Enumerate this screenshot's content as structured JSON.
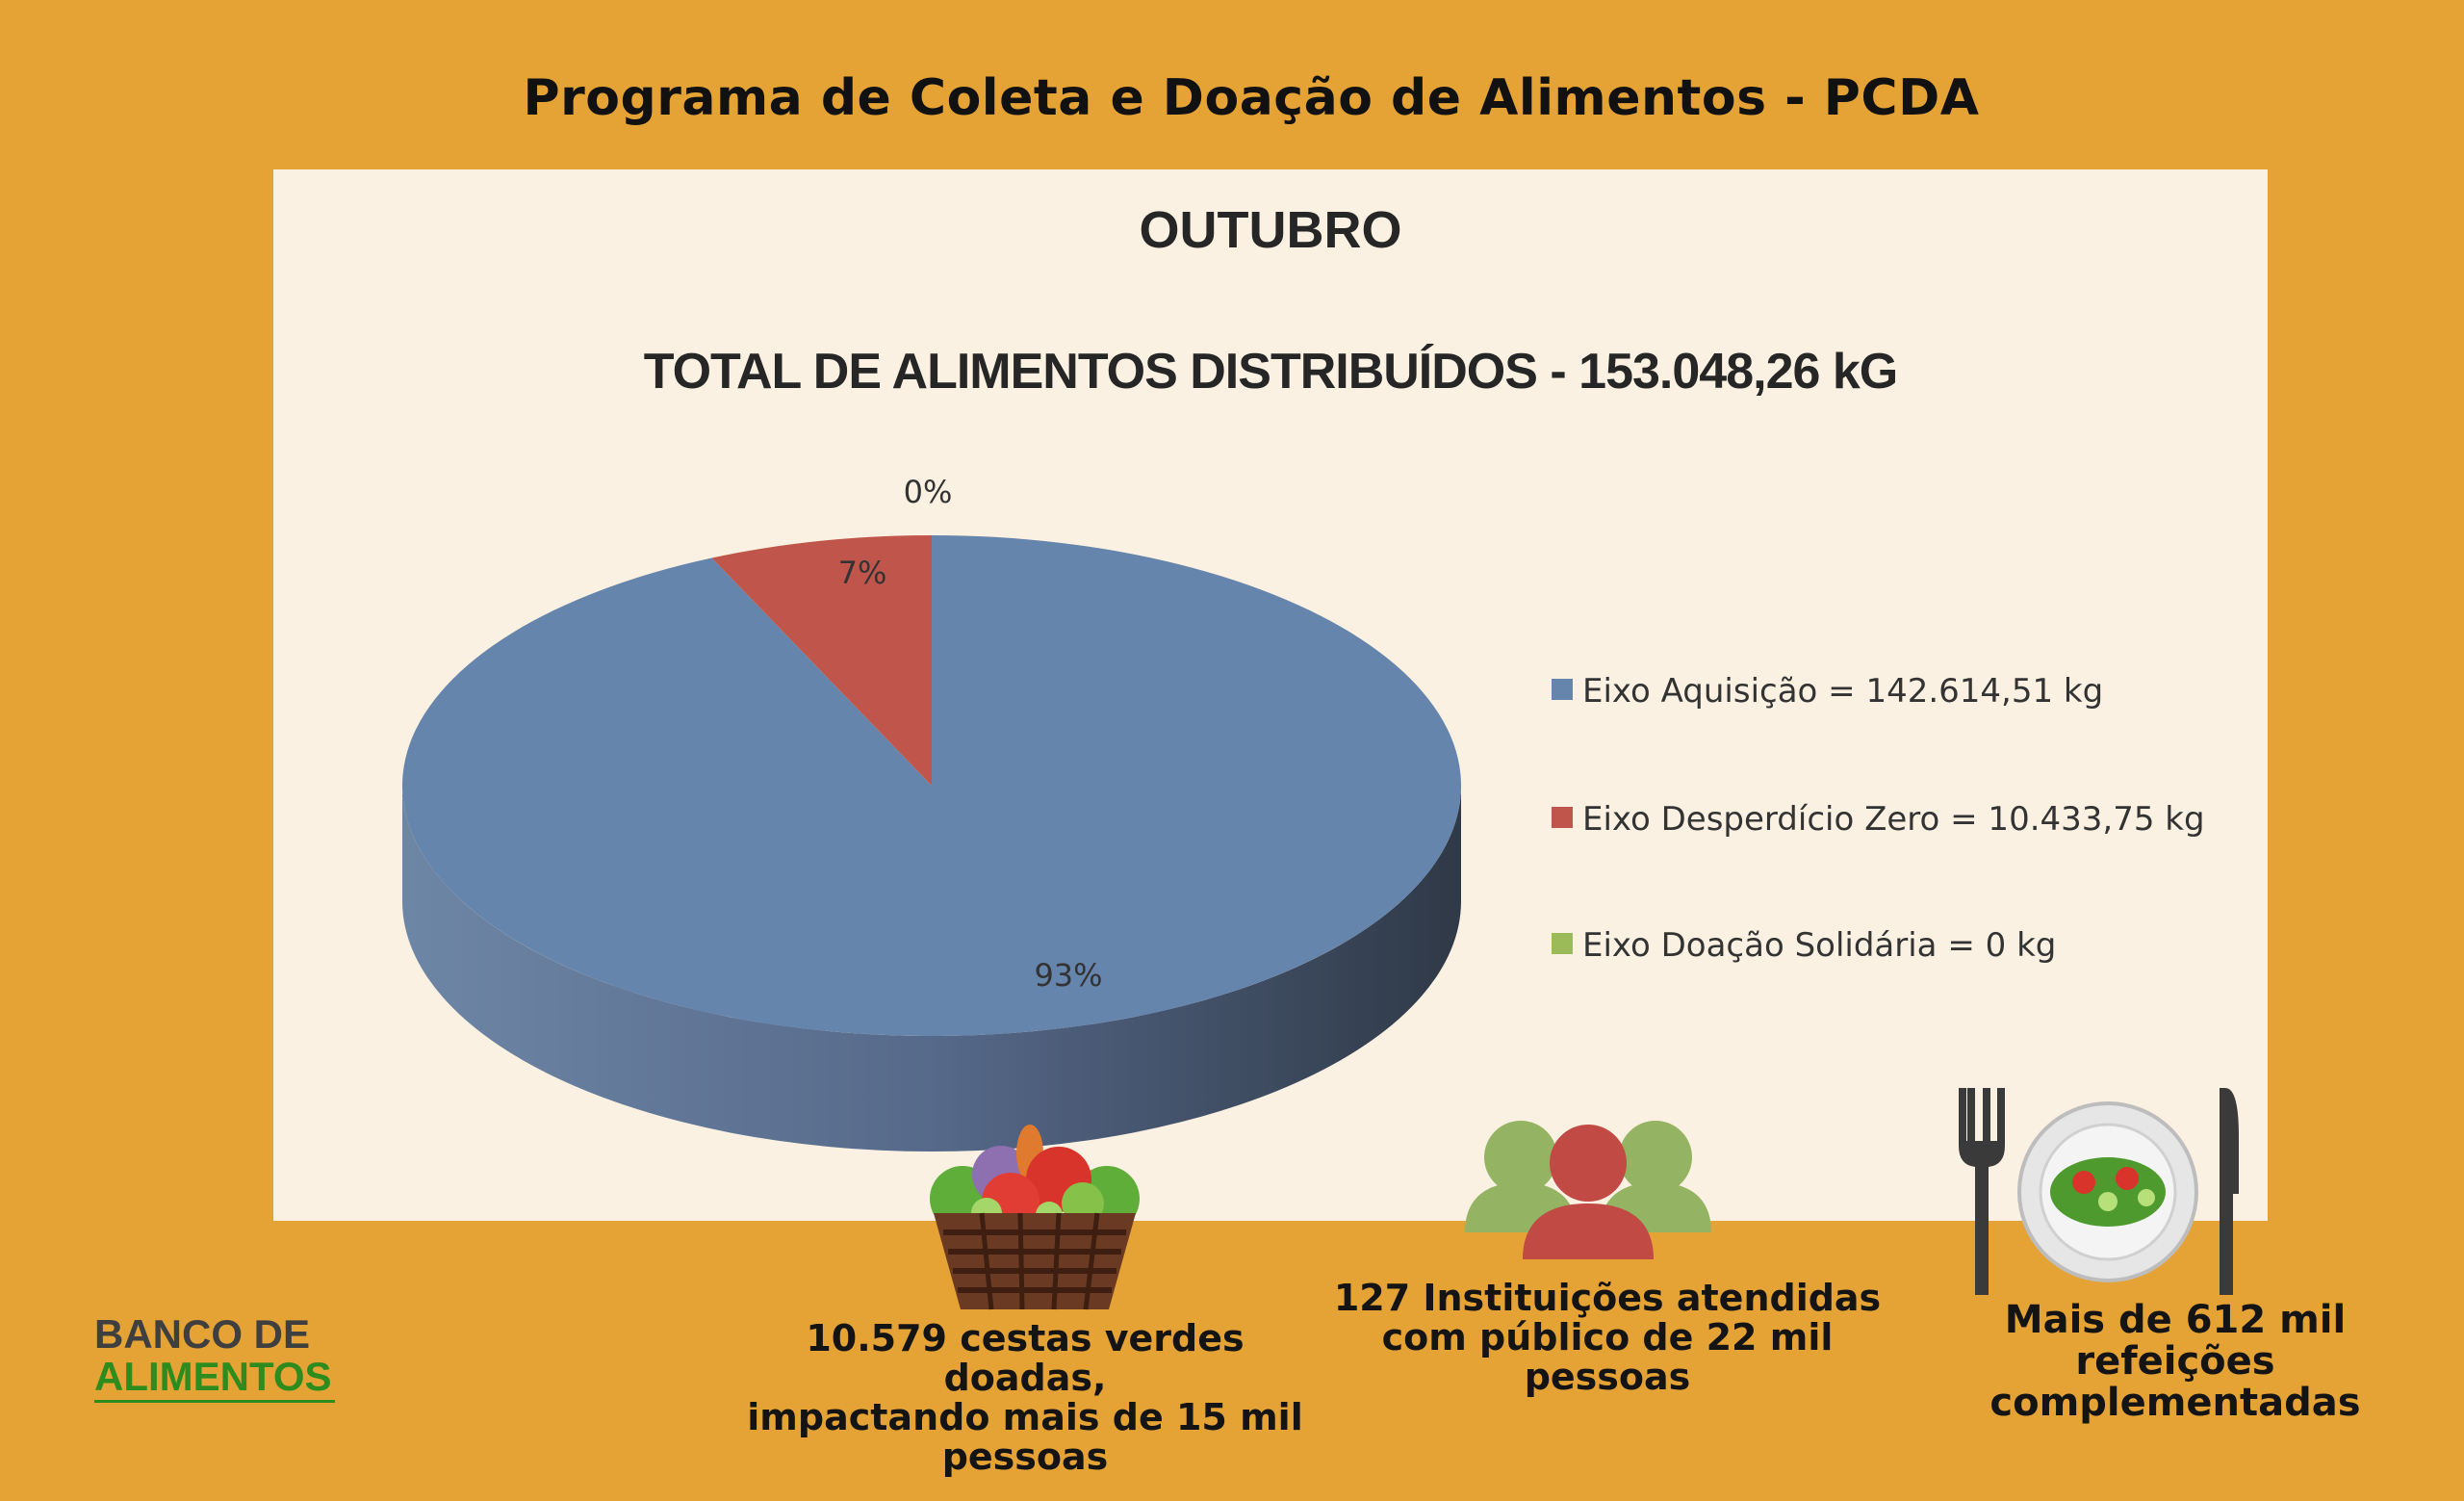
{
  "header": {
    "title": "Programa de Coleta e Doação de Alimentos - PCDA"
  },
  "chart_data": {
    "type": "pie",
    "title": "OUTUBRO",
    "subtitle": "TOTAL DE ALIMENTOS DISTRIBUÍDOS -  153.048,26 kG",
    "legend_position": "right",
    "slices": [
      {
        "label": "Eixo Aquisição = 142.614,51 kg",
        "value": 142614.51,
        "percent_label": "93%",
        "color": "#6685AC"
      },
      {
        "label": "Eixo Desperdício Zero = 10.433,75 kg",
        "value": 10433.75,
        "percent_label": "7%",
        "color": "#C0564B"
      },
      {
        "label": "Eixo Doação Solidária = 0 kg",
        "value": 0,
        "percent_label": "0%",
        "color": "#9BBB59"
      }
    ]
  },
  "stats": {
    "baskets": {
      "lines": [
        "10.579 cestas verdes doadas,",
        "impactando mais de 15 mil",
        "pessoas"
      ],
      "icon": "vegetable-basket-icon"
    },
    "institutions": {
      "lines": [
        "127 Instituições atendidas",
        "com público de 22 mil pessoas"
      ],
      "icon": "people-group-icon"
    },
    "meals": {
      "lines": [
        "Mais de 612 mil refeições",
        "complementadas"
      ],
      "icon": "dinner-plate-icon"
    }
  },
  "logo": {
    "line1": "BANCO DE",
    "line2": "ALIMENTOS"
  }
}
